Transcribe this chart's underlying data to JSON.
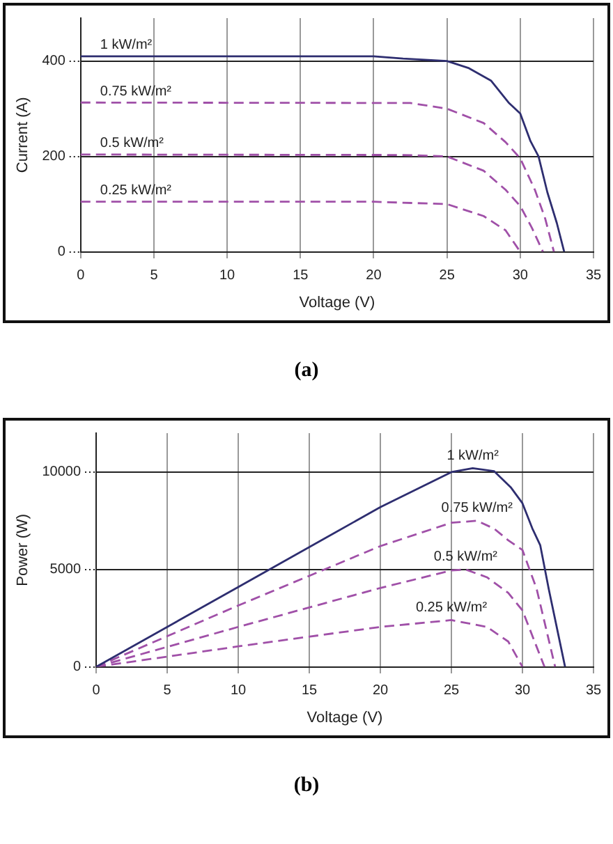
{
  "chart_data": [
    {
      "type": "line",
      "title": "(a)",
      "xlabel": "Voltage (V)",
      "ylabel": "Current (A)",
      "xlim": [
        0,
        35
      ],
      "xticks": [
        0,
        5,
        10,
        15,
        20,
        25,
        30,
        35
      ],
      "ylim": [
        0,
        490
      ],
      "yticks": [
        0,
        200,
        400
      ],
      "grid": true,
      "legend": false,
      "marker": "none",
      "series": [
        {
          "name": "1 kW/m²",
          "color": "#2e2e70",
          "line_style": "solid",
          "x": [
            0,
            20,
            22,
            25,
            26.5,
            28,
            29.2,
            30,
            30.7,
            31.25,
            31.85,
            32.5,
            33
          ],
          "values": [
            410,
            410,
            405,
            400,
            385,
            359,
            313,
            290,
            232,
            200,
            125,
            60,
            0
          ]
        },
        {
          "name": "0.75 kW/m²",
          "color": "#a050a8",
          "line_style": "dashed",
          "x": [
            0,
            22.5,
            25,
            27.5,
            29,
            30,
            31,
            31.7,
            32.3
          ],
          "values": [
            313,
            312,
            300,
            270,
            230,
            196,
            130,
            70,
            0
          ]
        },
        {
          "name": "0.5 kW/m²",
          "color": "#a050a8",
          "line_style": "dashed",
          "x": [
            0,
            22,
            25,
            27.5,
            29,
            30,
            30.8,
            31.55
          ],
          "values": [
            204,
            203,
            200,
            170,
            130,
            96,
            50,
            0
          ]
        },
        {
          "name": "0.25 kW/m²",
          "color": "#a050a8",
          "line_style": "dashed",
          "x": [
            0,
            20,
            25,
            27.5,
            29,
            30
          ],
          "values": [
            105,
            105,
            100,
            75,
            45,
            0
          ]
        }
      ]
    },
    {
      "type": "line",
      "title": "(b)",
      "xlabel": "Voltage (V)",
      "ylabel": "Power (W)",
      "xlim": [
        0,
        35
      ],
      "xticks": [
        0,
        5,
        10,
        15,
        20,
        25,
        30,
        35
      ],
      "ylim": [
        0,
        12000
      ],
      "yticks": [
        0,
        5000,
        10000
      ],
      "grid": true,
      "legend": false,
      "marker": "none",
      "series": [
        {
          "name": "1 kW/m²",
          "color": "#2e2e70",
          "line_style": "solid",
          "x": [
            0,
            10,
            20,
            25,
            26.5,
            28,
            29.2,
            30,
            30.7,
            31.25,
            31.85,
            33
          ],
          "values": [
            0,
            4100,
            8200,
            10000,
            10200,
            10050,
            9200,
            8400,
            7100,
            6250,
            4000,
            0
          ]
        },
        {
          "name": "0.75 kW/m²",
          "color": "#a050a8",
          "line_style": "dashed",
          "x": [
            0,
            10,
            20,
            25,
            26.8,
            28,
            29,
            30,
            31,
            32.3
          ],
          "values": [
            0,
            3150,
            6200,
            7400,
            7500,
            7100,
            6500,
            6000,
            4000,
            0
          ]
        },
        {
          "name": "0.5 kW/m²",
          "color": "#a050a8",
          "line_style": "dashed",
          "x": [
            0,
            10,
            20,
            25,
            26,
            27.5,
            29,
            30,
            31.55
          ],
          "values": [
            0,
            2050,
            4050,
            4950,
            5000,
            4600,
            3800,
            2900,
            0
          ]
        },
        {
          "name": "0.25 kW/m²",
          "color": "#a050a8",
          "line_style": "dashed",
          "x": [
            0,
            10,
            20,
            25,
            27.5,
            29,
            30
          ],
          "values": [
            0,
            1050,
            2050,
            2400,
            2050,
            1300,
            0
          ]
        }
      ]
    }
  ]
}
